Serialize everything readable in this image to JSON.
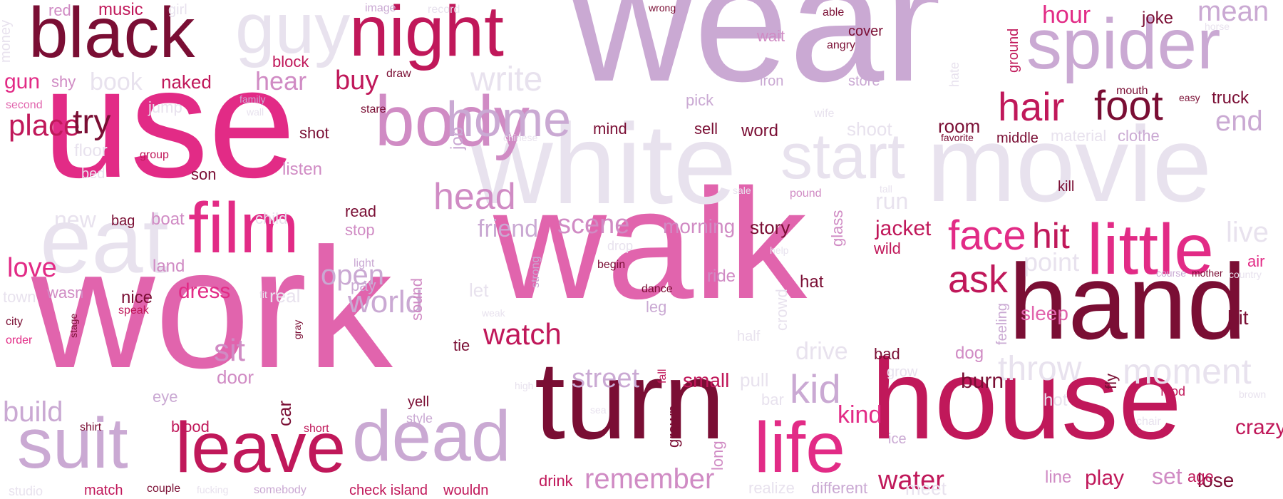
{
  "palette": {
    "dark": "#7a0e34",
    "crimson": "#c0185a",
    "magenta": "#e22b86",
    "pink": "#e164ad",
    "mauve": "#d08bc4",
    "lilac": "#caa9d3",
    "pale": "#e8e2ee"
  },
  "words": [
    {
      "text": "walk",
      "color": "pink"
    },
    {
      "text": "work",
      "color": "pink"
    },
    {
      "text": "wear",
      "color": "lilac"
    },
    {
      "text": "use",
      "color": "magenta"
    },
    {
      "text": "white",
      "color": "pale"
    },
    {
      "text": "movie",
      "color": "pale"
    },
    {
      "text": "house",
      "color": "crimson"
    },
    {
      "text": "hand",
      "color": "dark"
    },
    {
      "text": "turn",
      "color": "dark"
    },
    {
      "text": "start",
      "color": "pale"
    },
    {
      "text": "black",
      "color": "dark"
    },
    {
      "text": "night",
      "color": "crimson"
    },
    {
      "text": "spider",
      "color": "lilac"
    },
    {
      "text": "eat",
      "color": "pale"
    },
    {
      "text": "film",
      "color": "magenta"
    },
    {
      "text": "dead",
      "color": "lilac"
    },
    {
      "text": "leave",
      "color": "crimson"
    },
    {
      "text": "suit",
      "color": "lilac"
    },
    {
      "text": "guy",
      "color": "pale"
    },
    {
      "text": "body",
      "color": "mauve"
    },
    {
      "text": "life",
      "color": "magenta"
    },
    {
      "text": "little",
      "color": "magenta"
    },
    {
      "text": "home",
      "color": "lilac"
    },
    {
      "text": "face",
      "color": "magenta"
    },
    {
      "text": "hair",
      "color": "crimson"
    },
    {
      "text": "foot",
      "color": "dark"
    },
    {
      "text": "head",
      "color": "mauve"
    },
    {
      "text": "write",
      "color": "pale"
    },
    {
      "text": "moment",
      "color": "pale"
    },
    {
      "text": "throw",
      "color": "pale"
    },
    {
      "text": "hit",
      "color": "crimson"
    },
    {
      "text": "kid",
      "color": "lilac"
    },
    {
      "text": "ask",
      "color": "crimson"
    },
    {
      "text": "mean",
      "color": "lilac"
    },
    {
      "text": "end",
      "color": "lilac"
    },
    {
      "text": "place",
      "color": "crimson"
    },
    {
      "text": "try",
      "color": "dark"
    },
    {
      "text": "world",
      "color": "lilac"
    },
    {
      "text": "watch",
      "color": "crimson"
    },
    {
      "text": "remember",
      "color": "mauve"
    },
    {
      "text": "street",
      "color": "lilac"
    },
    {
      "text": "water",
      "color": "crimson"
    },
    {
      "text": "scene",
      "color": "mauve"
    },
    {
      "text": "friend",
      "color": "lilac"
    },
    {
      "text": "hour",
      "color": "magenta"
    },
    {
      "text": "live",
      "color": "pale"
    },
    {
      "text": "point",
      "color": "pale"
    },
    {
      "text": "kind",
      "color": "magenta"
    },
    {
      "text": "sit",
      "color": "mauve"
    },
    {
      "text": "open",
      "color": "lilac"
    },
    {
      "text": "build",
      "color": "lilac"
    },
    {
      "text": "love",
      "color": "magenta"
    },
    {
      "text": "buy",
      "color": "crimson"
    },
    {
      "text": "hear",
      "color": "mauve"
    },
    {
      "text": "book",
      "color": "pale"
    },
    {
      "text": "new",
      "color": "pale"
    },
    {
      "text": "drive",
      "color": "pale"
    },
    {
      "text": "jacket",
      "color": "crimson"
    },
    {
      "text": "burn",
      "color": "dark"
    },
    {
      "text": "dress",
      "color": "magenta"
    },
    {
      "text": "run",
      "color": "pale"
    },
    {
      "text": "bit",
      "color": "dark"
    },
    {
      "text": "crazy",
      "color": "crimson"
    },
    {
      "text": "room",
      "color": "dark"
    },
    {
      "text": "sleep",
      "color": "pink"
    },
    {
      "text": "set",
      "color": "mauve"
    },
    {
      "text": "play",
      "color": "crimson"
    },
    {
      "text": "lose",
      "color": "dark"
    },
    {
      "text": "morning",
      "color": "mauve"
    },
    {
      "text": "story",
      "color": "dark"
    },
    {
      "text": "small",
      "color": "crimson"
    },
    {
      "text": "shoot",
      "color": "pale"
    },
    {
      "text": "jump",
      "color": "pale"
    },
    {
      "text": "floor",
      "color": "pale"
    },
    {
      "text": "door",
      "color": "mauve"
    },
    {
      "text": "bed",
      "color": "pale"
    },
    {
      "text": "son",
      "color": "dark"
    },
    {
      "text": "shot",
      "color": "dark"
    },
    {
      "text": "listen",
      "color": "mauve"
    },
    {
      "text": "naked",
      "color": "crimson"
    },
    {
      "text": "block",
      "color": "crimson"
    },
    {
      "text": "music",
      "color": "crimson"
    },
    {
      "text": "red",
      "color": "mauve"
    },
    {
      "text": "girl",
      "color": "pale"
    },
    {
      "text": "money",
      "color": "pale"
    },
    {
      "text": "gun",
      "color": "magenta"
    },
    {
      "text": "shy",
      "color": "mauve"
    },
    {
      "text": "second",
      "color": "pink"
    },
    {
      "text": "family",
      "color": "lilac"
    },
    {
      "text": "wall",
      "color": "pale"
    },
    {
      "text": "draw",
      "color": "dark"
    },
    {
      "text": "stare",
      "color": "dark"
    },
    {
      "text": "image",
      "color": "lilac"
    },
    {
      "text": "record",
      "color": "pale"
    },
    {
      "text": "group",
      "color": "crimson"
    },
    {
      "text": "bag",
      "color": "dark"
    },
    {
      "text": "boat",
      "color": "mauve"
    },
    {
      "text": "child",
      "color": "pale"
    },
    {
      "text": "land",
      "color": "mauve"
    },
    {
      "text": "read",
      "color": "dark"
    },
    {
      "text": "stop",
      "color": "mauve"
    },
    {
      "text": "light",
      "color": "lilac"
    },
    {
      "text": "pay",
      "color": "lilac"
    },
    {
      "text": "real",
      "color": "pale"
    },
    {
      "text": "fit",
      "color": "pale"
    },
    {
      "text": "nice",
      "color": "dark"
    },
    {
      "text": "speak",
      "color": "crimson"
    },
    {
      "text": "town",
      "color": "pale"
    },
    {
      "text": "wasn",
      "color": "mauve"
    },
    {
      "text": "city",
      "color": "dark"
    },
    {
      "text": "order",
      "color": "magenta"
    },
    {
      "text": "stage",
      "color": "dark"
    },
    {
      "text": "gray",
      "color": "dark"
    },
    {
      "text": "eye",
      "color": "lilac"
    },
    {
      "text": "shirt",
      "color": "dark"
    },
    {
      "text": "blood",
      "color": "crimson"
    },
    {
      "text": "short",
      "color": "crimson"
    },
    {
      "text": "car",
      "color": "dark"
    },
    {
      "text": "match",
      "color": "crimson"
    },
    {
      "text": "couple",
      "color": "dark"
    },
    {
      "text": "fucking",
      "color": "pale"
    },
    {
      "text": "somebody",
      "color": "lilac"
    },
    {
      "text": "check island",
      "color": "crimson"
    },
    {
      "text": "wouldn",
      "color": "crimson"
    },
    {
      "text": "studio",
      "color": "pale"
    },
    {
      "text": "yell",
      "color": "dark"
    },
    {
      "text": "style",
      "color": "lilac"
    },
    {
      "text": "tie",
      "color": "dark"
    },
    {
      "text": "sound",
      "color": "mauve"
    },
    {
      "text": "strong",
      "color": "lilac"
    },
    {
      "text": "let",
      "color": "pale"
    },
    {
      "text": "weak",
      "color": "pale"
    },
    {
      "text": "job",
      "color": "lilac"
    },
    {
      "text": "high",
      "color": "pale"
    },
    {
      "text": "sea",
      "color": "pale"
    },
    {
      "text": "drink",
      "color": "crimson"
    },
    {
      "text": "realize",
      "color": "pale"
    },
    {
      "text": "different",
      "color": "lilac"
    },
    {
      "text": "meet",
      "color": "pale"
    },
    {
      "text": "line",
      "color": "mauve"
    },
    {
      "text": "age",
      "color": "crimson"
    },
    {
      "text": "fall",
      "color": "crimson"
    },
    {
      "text": "grown",
      "color": "dark"
    },
    {
      "text": "long",
      "color": "mauve"
    },
    {
      "text": "ice",
      "color": "lilac"
    },
    {
      "text": "hot",
      "color": "pale"
    },
    {
      "text": "chair",
      "color": "pale"
    },
    {
      "text": "food",
      "color": "crimson"
    },
    {
      "text": "brown",
      "color": "pale"
    },
    {
      "text": "fly",
      "color": "dark"
    },
    {
      "text": "bad",
      "color": "dark"
    },
    {
      "text": "grow",
      "color": "pale"
    },
    {
      "text": "dog",
      "color": "mauve"
    },
    {
      "text": "feeling",
      "color": "lilac"
    },
    {
      "text": "pull",
      "color": "pale"
    },
    {
      "text": "bar",
      "color": "pale"
    },
    {
      "text": "half",
      "color": "pale"
    },
    {
      "text": "crowd",
      "color": "pale"
    },
    {
      "text": "leg",
      "color": "lilac"
    },
    {
      "text": "dance",
      "color": "dark"
    },
    {
      "text": "ride",
      "color": "mauve"
    },
    {
      "text": "hat",
      "color": "dark"
    },
    {
      "text": "begin",
      "color": "dark"
    },
    {
      "text": "help",
      "color": "pale"
    },
    {
      "text": "drop",
      "color": "pale"
    },
    {
      "text": "glass",
      "color": "mauve"
    },
    {
      "text": "wild",
      "color": "crimson"
    },
    {
      "text": "sale",
      "color": "pale"
    },
    {
      "text": "pound",
      "color": "mauve"
    },
    {
      "text": "tall",
      "color": "pale"
    },
    {
      "text": "kill",
      "color": "dark"
    },
    {
      "text": "course",
      "color": "lilac"
    },
    {
      "text": "mother",
      "color": "dark"
    },
    {
      "text": "country",
      "color": "pale"
    },
    {
      "text": "air",
      "color": "magenta"
    },
    {
      "text": "mind",
      "color": "dark"
    },
    {
      "text": "sell",
      "color": "dark"
    },
    {
      "text": "word",
      "color": "dark"
    },
    {
      "text": "pick",
      "color": "lilac"
    },
    {
      "text": "chinese",
      "color": "pale"
    },
    {
      "text": "iron",
      "color": "lilac"
    },
    {
      "text": "wife",
      "color": "pale"
    },
    {
      "text": "store",
      "color": "lilac"
    },
    {
      "text": "wait",
      "color": "mauve"
    },
    {
      "text": "angry",
      "color": "dark"
    },
    {
      "text": "cover",
      "color": "dark"
    },
    {
      "text": "able",
      "color": "dark"
    },
    {
      "text": "wrong",
      "color": "dark"
    },
    {
      "text": "hate",
      "color": "pale"
    },
    {
      "text": "ground",
      "color": "crimson"
    },
    {
      "text": "joke",
      "color": "dark"
    },
    {
      "text": "horse",
      "color": "pale"
    },
    {
      "text": "mouth",
      "color": "dark"
    },
    {
      "text": "easy",
      "color": "dark"
    },
    {
      "text": "truck",
      "color": "dark"
    },
    {
      "text": "favorite",
      "color": "dark"
    },
    {
      "text": "middle",
      "color": "dark"
    },
    {
      "text": "material",
      "color": "pale"
    },
    {
      "text": "clothe",
      "color": "lilac"
    }
  ]
}
